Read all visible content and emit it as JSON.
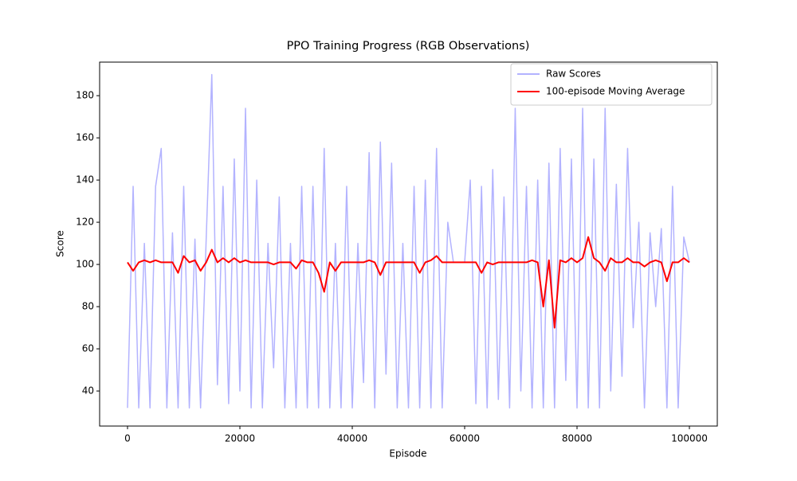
{
  "chart_data": {
    "type": "line",
    "title": "PPO Training Progress (RGB Observations)",
    "x_label": "Episode",
    "y_label": "Score",
    "x": [
      0,
      1000,
      2000,
      3000,
      4000,
      5000,
      6000,
      7000,
      8000,
      9000,
      10000,
      11000,
      12000,
      13000,
      14000,
      15000,
      16000,
      17000,
      18000,
      19000,
      20000,
      21000,
      22000,
      23000,
      24000,
      25000,
      26000,
      27000,
      28000,
      29000,
      30000,
      31000,
      32000,
      33000,
      34000,
      35000,
      36000,
      37000,
      38000,
      39000,
      40000,
      41000,
      42000,
      43000,
      44000,
      45000,
      46000,
      47000,
      48000,
      49000,
      50000,
      51000,
      52000,
      53000,
      54000,
      55000,
      56000,
      57000,
      58000,
      59000,
      60000,
      61000,
      62000,
      63000,
      64000,
      65000,
      66000,
      67000,
      68000,
      69000,
      70000,
      71000,
      72000,
      73000,
      74000,
      75000,
      76000,
      77000,
      78000,
      79000,
      80000,
      81000,
      82000,
      83000,
      84000,
      85000,
      86000,
      87000,
      88000,
      89000,
      90000,
      91000,
      92000,
      93000,
      94000,
      95000,
      96000,
      97000,
      98000,
      99000,
      100000
    ],
    "series": [
      {
        "name": "Raw Scores",
        "color": "#b3b3ff",
        "values": [
          32,
          137,
          32,
          110,
          32,
          137,
          155,
          32,
          115,
          32,
          137,
          32,
          112,
          32,
          112,
          190,
          43,
          137,
          34,
          150,
          40,
          174,
          32,
          140,
          32,
          110,
          51,
          132,
          32,
          110,
          32,
          137,
          32,
          137,
          32,
          155,
          32,
          110,
          32,
          137,
          32,
          110,
          44,
          153,
          32,
          158,
          48,
          148,
          32,
          110,
          32,
          137,
          32,
          140,
          32,
          155,
          32,
          120,
          101,
          101,
          101,
          140,
          34,
          137,
          32,
          145,
          36,
          132,
          32,
          174,
          40,
          137,
          32,
          140,
          32,
          148,
          32,
          155,
          45,
          150,
          32,
          174,
          32,
          150,
          32,
          174,
          40,
          138,
          47,
          155,
          70,
          120,
          32,
          115,
          80,
          117,
          32,
          137,
          32,
          113,
          101
        ]
      },
      {
        "name": "100-episode Moving Average",
        "color": "#ff0000",
        "values": [
          101,
          97,
          101,
          102,
          101,
          102,
          101,
          101,
          101,
          96,
          104,
          101,
          102,
          97,
          101,
          107,
          101,
          103,
          101,
          103,
          101,
          102,
          101,
          101,
          101,
          101,
          100,
          101,
          101,
          101,
          98,
          102,
          101,
          101,
          96,
          87,
          101,
          97,
          101,
          101,
          101,
          101,
          101,
          102,
          101,
          95,
          101,
          101,
          101,
          101,
          101,
          101,
          96,
          101,
          102,
          104,
          101,
          101,
          101,
          101,
          101,
          101,
          101,
          96,
          101,
          100,
          101,
          101,
          101,
          101,
          101,
          101,
          102,
          101,
          80,
          102,
          70,
          102,
          101,
          103,
          101,
          103,
          113,
          103,
          101,
          97,
          103,
          101,
          101,
          103,
          101,
          101,
          99,
          101,
          102,
          101,
          92,
          101,
          101,
          103,
          101
        ]
      }
    ],
    "xlim": [
      -4965,
      104965
    ],
    "ylim": [
      23.4,
      195.9
    ],
    "xticks": [
      0,
      20000,
      40000,
      60000,
      80000,
      100000
    ],
    "yticks": [
      40,
      60,
      80,
      100,
      120,
      140,
      160,
      180
    ],
    "legend": "upper right"
  }
}
